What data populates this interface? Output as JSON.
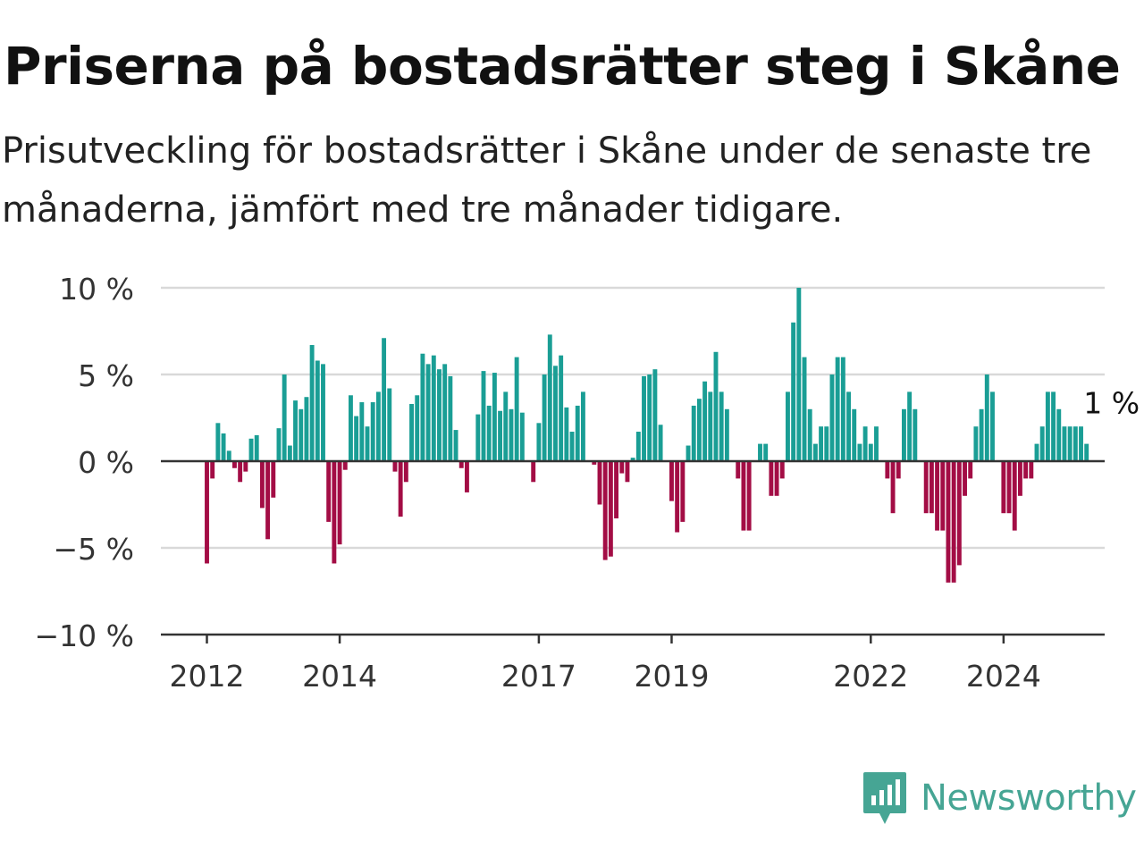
{
  "title": "Priserna på bostadsrätter steg i Skåne",
  "subtitle": "Prisutveckling för bostadsrätter i Skåne under de senaste tre månaderna, jämfört med tre månader tidigare.",
  "brand": {
    "name": "Newsworthy",
    "icon": "newsworthy-logo-icon",
    "color": "#46a594"
  },
  "colors": {
    "positive": "#1a9e95",
    "negative": "#a30d45",
    "grid": "#d9d9d9",
    "zero": "#333333"
  },
  "chart_data": {
    "type": "bar",
    "x_start": "2012-01",
    "x_tick_labels": [
      "2012",
      "2014",
      "2017",
      "2019",
      "2022",
      "2024"
    ],
    "y_tick_labels": [
      "10 %",
      "5 %",
      "0 %",
      "−5 %",
      "−10 %"
    ],
    "y_ticks": [
      10,
      5,
      0,
      -5,
      -10
    ],
    "ylim": [
      -10,
      10
    ],
    "grid": true,
    "end_label": "1 %",
    "values": [
      -5.9,
      -1.0,
      2.2,
      1.6,
      0.6,
      -0.4,
      -1.2,
      -0.6,
      1.3,
      1.5,
      -2.7,
      -4.5,
      -2.1,
      1.9,
      5.0,
      0.9,
      3.5,
      3.0,
      3.7,
      6.7,
      5.8,
      5.6,
      -3.5,
      -5.9,
      -4.8,
      -0.5,
      3.8,
      2.6,
      3.4,
      2.0,
      3.4,
      4.0,
      7.1,
      4.2,
      -0.6,
      -3.2,
      -1.2,
      3.3,
      3.8,
      6.2,
      5.6,
      6.1,
      5.3,
      5.6,
      4.9,
      1.8,
      -0.4,
      -1.8,
      0.0,
      2.7,
      5.2,
      3.2,
      5.1,
      2.9,
      4.0,
      3.0,
      6.0,
      2.8,
      0.0,
      -1.2,
      2.2,
      5.0,
      7.3,
      5.5,
      6.1,
      3.1,
      1.7,
      3.2,
      4.0,
      0.0,
      -0.2,
      -2.5,
      -5.7,
      -5.5,
      -3.3,
      -0.7,
      -1.2,
      0.2,
      1.7,
      4.9,
      5.0,
      5.3,
      2.1,
      0.0,
      -2.3,
      -4.1,
      -3.5,
      0.9,
      3.2,
      3.6,
      4.6,
      4.0,
      6.3,
      4.0,
      3.0,
      0.0,
      -1.0,
      -4.0,
      -4.0,
      0.0,
      1.0,
      1.0,
      -2.0,
      -2.0,
      -1.0,
      4.0,
      8.0,
      10.0,
      6.0,
      3.0,
      1.0,
      2.0,
      2.0,
      5.0,
      6.0,
      6.0,
      4.0,
      3.0,
      1.0,
      2.0,
      1.0,
      2.0,
      0.0,
      -1.0,
      -3.0,
      -1.0,
      3.0,
      4.0,
      3.0,
      0.0,
      -3.0,
      -3.0,
      -4.0,
      -4.0,
      -7.0,
      -7.0,
      -6.0,
      -2.0,
      -1.0,
      2.0,
      3.0,
      5.0,
      4.0,
      0.0,
      -3.0,
      -3.0,
      -4.0,
      -2.0,
      -1.0,
      -1.0,
      1.0,
      2.0,
      4.0,
      4.0,
      3.0,
      2.0,
      2.0,
      2.0,
      2.0,
      1.0
    ]
  }
}
